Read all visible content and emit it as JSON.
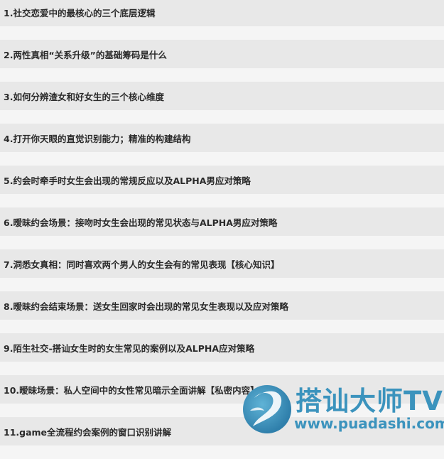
{
  "items": [
    "1.社交恋爱中的最核心的三个底层逻辑",
    "2.两性真相“关系升级”的基础筹码是什么",
    "3.如何分辨渣女和好女生的三个核心维度",
    "4.打开你天眼的直觉识别能力；精准的构建结构",
    "5.约会时牵手时女生会出现的常规反应以及ALPHA男应对策略",
    "6.暧昧约会场景：接吻时女生会出现的常见状态与ALPHA男应对策略",
    "7.洞悉女真相：同时喜欢两个男人的女生会有的常见表现【核心知识】",
    "8.暧昧约会结束场景：送女生回家时会出现的常见女生表现以及应对策略",
    "9.陌生社交-搭讪女生时的女生常见的案例以及ALPHA应对策略",
    "10.暧昧场景：私人空间中的女性常见暗示全面讲解【私密内容】",
    "11.game全流程约会案例的窗口识别讲解"
  ],
  "watermark": {
    "title": "搭讪大师TV",
    "url": "www.puadashi.com",
    "color": "#3b93bd"
  }
}
